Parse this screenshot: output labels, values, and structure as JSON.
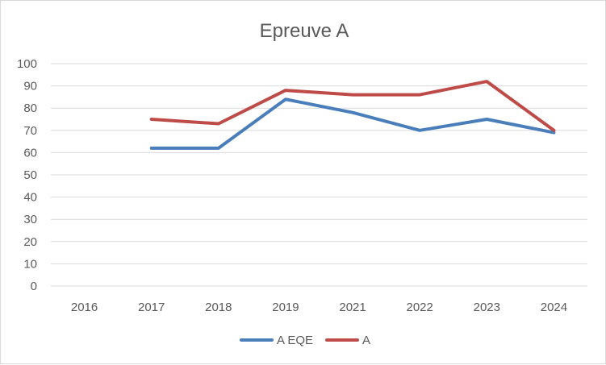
{
  "chart_data": {
    "type": "line",
    "title": "Epreuve A",
    "categories": [
      "2016",
      "2017",
      "2018",
      "2019",
      "2021",
      "2022",
      "2023",
      "2024"
    ],
    "ylim": [
      0,
      100
    ],
    "yticks": [
      "0",
      "10",
      "20",
      "30",
      "40",
      "50",
      "60",
      "70",
      "80",
      "90",
      "100"
    ],
    "grid": true,
    "legend_position": "bottom",
    "series": [
      {
        "name": "A EQE",
        "color": "#4a7ebb",
        "values": [
          null,
          62,
          62,
          84,
          78,
          70,
          75,
          69
        ]
      },
      {
        "name": "A",
        "color": "#be4b48",
        "values": [
          null,
          75,
          73,
          88,
          86,
          86,
          92,
          70
        ]
      }
    ]
  }
}
